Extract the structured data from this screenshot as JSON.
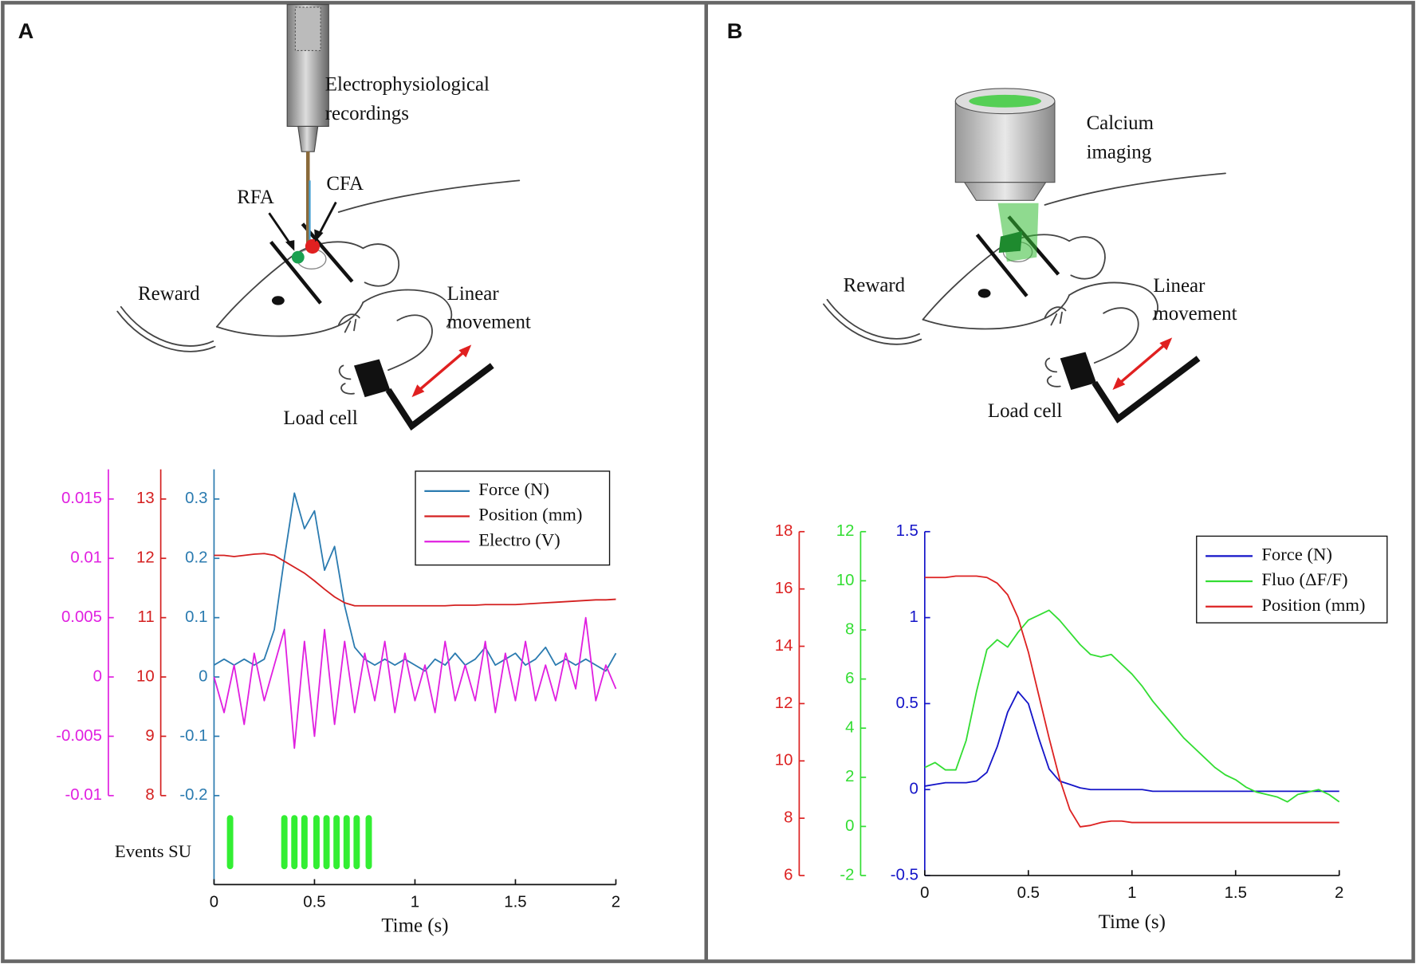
{
  "panels": [
    {
      "label": "A",
      "annotations": [
        {
          "lines": [
            "Electrophysiological",
            "recordings"
          ]
        },
        {
          "lines": [
            "RFA"
          ]
        },
        {
          "lines": [
            "CFA"
          ]
        },
        {
          "lines": [
            "Reward"
          ]
        },
        {
          "lines": [
            "Linear",
            "movement"
          ]
        },
        {
          "lines": [
            "Load cell"
          ]
        }
      ]
    },
    {
      "label": "B",
      "annotations": [
        {
          "lines": [
            "Calcium",
            "imaging"
          ]
        },
        {
          "lines": [
            "Reward"
          ]
        },
        {
          "lines": [
            "Linear",
            "movement"
          ]
        },
        {
          "lines": [
            "Load cell"
          ]
        }
      ]
    }
  ],
  "chart_data": [
    {
      "type": "line",
      "x_label": "Time (s)",
      "x": [
        0,
        0.05,
        0.1,
        0.15,
        0.2,
        0.25,
        0.3,
        0.35,
        0.4,
        0.45,
        0.5,
        0.55,
        0.6,
        0.65,
        0.7,
        0.75,
        0.8,
        0.85,
        0.9,
        0.95,
        1,
        1.05,
        1.1,
        1.15,
        1.2,
        1.25,
        1.3,
        1.35,
        1.4,
        1.45,
        1.5,
        1.55,
        1.6,
        1.65,
        1.7,
        1.75,
        1.8,
        1.85,
        1.9,
        1.95,
        2
      ],
      "xlim": [
        0,
        2
      ],
      "xticks": [
        0,
        0.5,
        1,
        1.5,
        2
      ],
      "ylim": [
        -0.35,
        0.35
      ],
      "yticks": [
        -0.2,
        -0.1,
        0,
        0.1,
        0.2,
        0.3
      ],
      "y2lim": [
        6.5,
        13.5
      ],
      "y2ticks": [
        8,
        9,
        10,
        11,
        12,
        13
      ],
      "y3lim": [
        -0.0175,
        0.0175
      ],
      "y3ticks": [
        -0.01,
        -0.005,
        0,
        0.005,
        0.01,
        0.015
      ],
      "legend": "upper right",
      "series": [
        {
          "name": "Force (N)",
          "color": "#2b7bb0",
          "axis": "y",
          "values": [
            0.02,
            0.03,
            0.02,
            0.03,
            0.02,
            0.03,
            0.08,
            0.2,
            0.31,
            0.25,
            0.28,
            0.18,
            0.22,
            0.12,
            0.05,
            0.03,
            0.02,
            0.03,
            0.02,
            0.03,
            0.02,
            0.01,
            0.03,
            0.02,
            0.04,
            0.02,
            0.03,
            0.05,
            0.02,
            0.03,
            0.04,
            0.02,
            0.03,
            0.05,
            0.02,
            0.03,
            0.02,
            0.03,
            0.02,
            0.01,
            0.04
          ]
        },
        {
          "name": "Position (mm)",
          "color": "#d42020",
          "axis": "y2",
          "values": [
            12.05,
            12.05,
            12.03,
            12.05,
            12.07,
            12.08,
            12.05,
            11.95,
            11.85,
            11.75,
            11.62,
            11.48,
            11.35,
            11.25,
            11.2,
            11.2,
            11.2,
            11.2,
            11.2,
            11.2,
            11.2,
            11.2,
            11.2,
            11.2,
            11.21,
            11.21,
            11.21,
            11.22,
            11.22,
            11.22,
            11.22,
            11.23,
            11.24,
            11.25,
            11.26,
            11.27,
            11.28,
            11.29,
            11.3,
            11.3,
            11.31
          ]
        },
        {
          "name": "Electro (V)",
          "color": "#e020e0",
          "axis": "y3",
          "values": [
            0,
            -0.003,
            0.001,
            -0.004,
            0.002,
            -0.002,
            0.001,
            0.004,
            -0.006,
            0.003,
            -0.005,
            0.004,
            -0.004,
            0.003,
            -0.003,
            0.002,
            -0.002,
            0.003,
            -0.003,
            0.002,
            -0.002,
            0.001,
            -0.003,
            0.003,
            -0.002,
            0.001,
            -0.002,
            0.003,
            -0.003,
            0.002,
            -0.002,
            0.003,
            -0.002,
            0.001,
            -0.002,
            0.002,
            -0.001,
            0.005,
            -0.002,
            0.001,
            -0.001
          ]
        }
      ],
      "events": {
        "name": "Events SU",
        "color": "#33ee33",
        "x": [
          0.08,
          0.35,
          0.4,
          0.45,
          0.51,
          0.56,
          0.61,
          0.66,
          0.71,
          0.77
        ]
      }
    },
    {
      "type": "line",
      "x_label": "Time (s)",
      "x": [
        0,
        0.05,
        0.1,
        0.15,
        0.2,
        0.25,
        0.3,
        0.35,
        0.4,
        0.45,
        0.5,
        0.55,
        0.6,
        0.65,
        0.7,
        0.75,
        0.8,
        0.85,
        0.9,
        0.95,
        1,
        1.05,
        1.1,
        1.15,
        1.2,
        1.25,
        1.3,
        1.35,
        1.4,
        1.45,
        1.5,
        1.55,
        1.6,
        1.65,
        1.7,
        1.75,
        1.8,
        1.85,
        1.9,
        1.95,
        2
      ],
      "xlim": [
        0,
        2
      ],
      "xticks": [
        0,
        0.5,
        1,
        1.5,
        2
      ],
      "ylim": [
        -0.5,
        1.5
      ],
      "yticks": [
        -0.5,
        0,
        0.5,
        1,
        1.5
      ],
      "y2lim": [
        -2,
        12
      ],
      "y2ticks": [
        -2,
        0,
        2,
        4,
        6,
        8,
        10,
        12
      ],
      "y3lim": [
        6,
        18
      ],
      "y3ticks": [
        6,
        8,
        10,
        12,
        14,
        16,
        18
      ],
      "legend": "upper right",
      "series": [
        {
          "name": "Force (N)",
          "color": "#1414c8",
          "axis": "y",
          "values": [
            0.02,
            0.03,
            0.04,
            0.04,
            0.04,
            0.05,
            0.1,
            0.25,
            0.45,
            0.57,
            0.5,
            0.3,
            0.12,
            0.05,
            0.03,
            0.01,
            0,
            0,
            0,
            0,
            0,
            0,
            -0.01,
            -0.01,
            -0.01,
            -0.01,
            -0.01,
            -0.01,
            -0.01,
            -0.01,
            -0.01,
            -0.01,
            -0.01,
            -0.01,
            -0.01,
            -0.01,
            -0.01,
            -0.01,
            -0.01,
            -0.01,
            -0.01
          ]
        },
        {
          "name": "Fluo (ΔF/F)",
          "color": "#33dd33",
          "axis": "y2",
          "values": [
            2.4,
            2.6,
            2.3,
            2.3,
            3.5,
            5.5,
            7.2,
            7.6,
            7.3,
            7.9,
            8.4,
            8.6,
            8.8,
            8.4,
            7.9,
            7.4,
            7.0,
            6.9,
            7.0,
            6.6,
            6.2,
            5.7,
            5.1,
            4.6,
            4.1,
            3.6,
            3.2,
            2.8,
            2.4,
            2.1,
            1.9,
            1.6,
            1.4,
            1.3,
            1.2,
            1.0,
            1.3,
            1.4,
            1.5,
            1.3,
            1.0
          ]
        },
        {
          "name": "Position (mm)",
          "color": "#dd2222",
          "axis": "y3",
          "values": [
            16.4,
            16.4,
            16.4,
            16.45,
            16.45,
            16.45,
            16.4,
            16.2,
            15.8,
            15.0,
            13.8,
            12.3,
            10.8,
            9.4,
            8.3,
            7.7,
            7.75,
            7.85,
            7.9,
            7.9,
            7.85,
            7.85,
            7.85,
            7.85,
            7.85,
            7.85,
            7.85,
            7.85,
            7.85,
            7.85,
            7.85,
            7.85,
            7.85,
            7.85,
            7.85,
            7.85,
            7.85,
            7.85,
            7.85,
            7.85,
            7.85
          ]
        }
      ]
    }
  ]
}
